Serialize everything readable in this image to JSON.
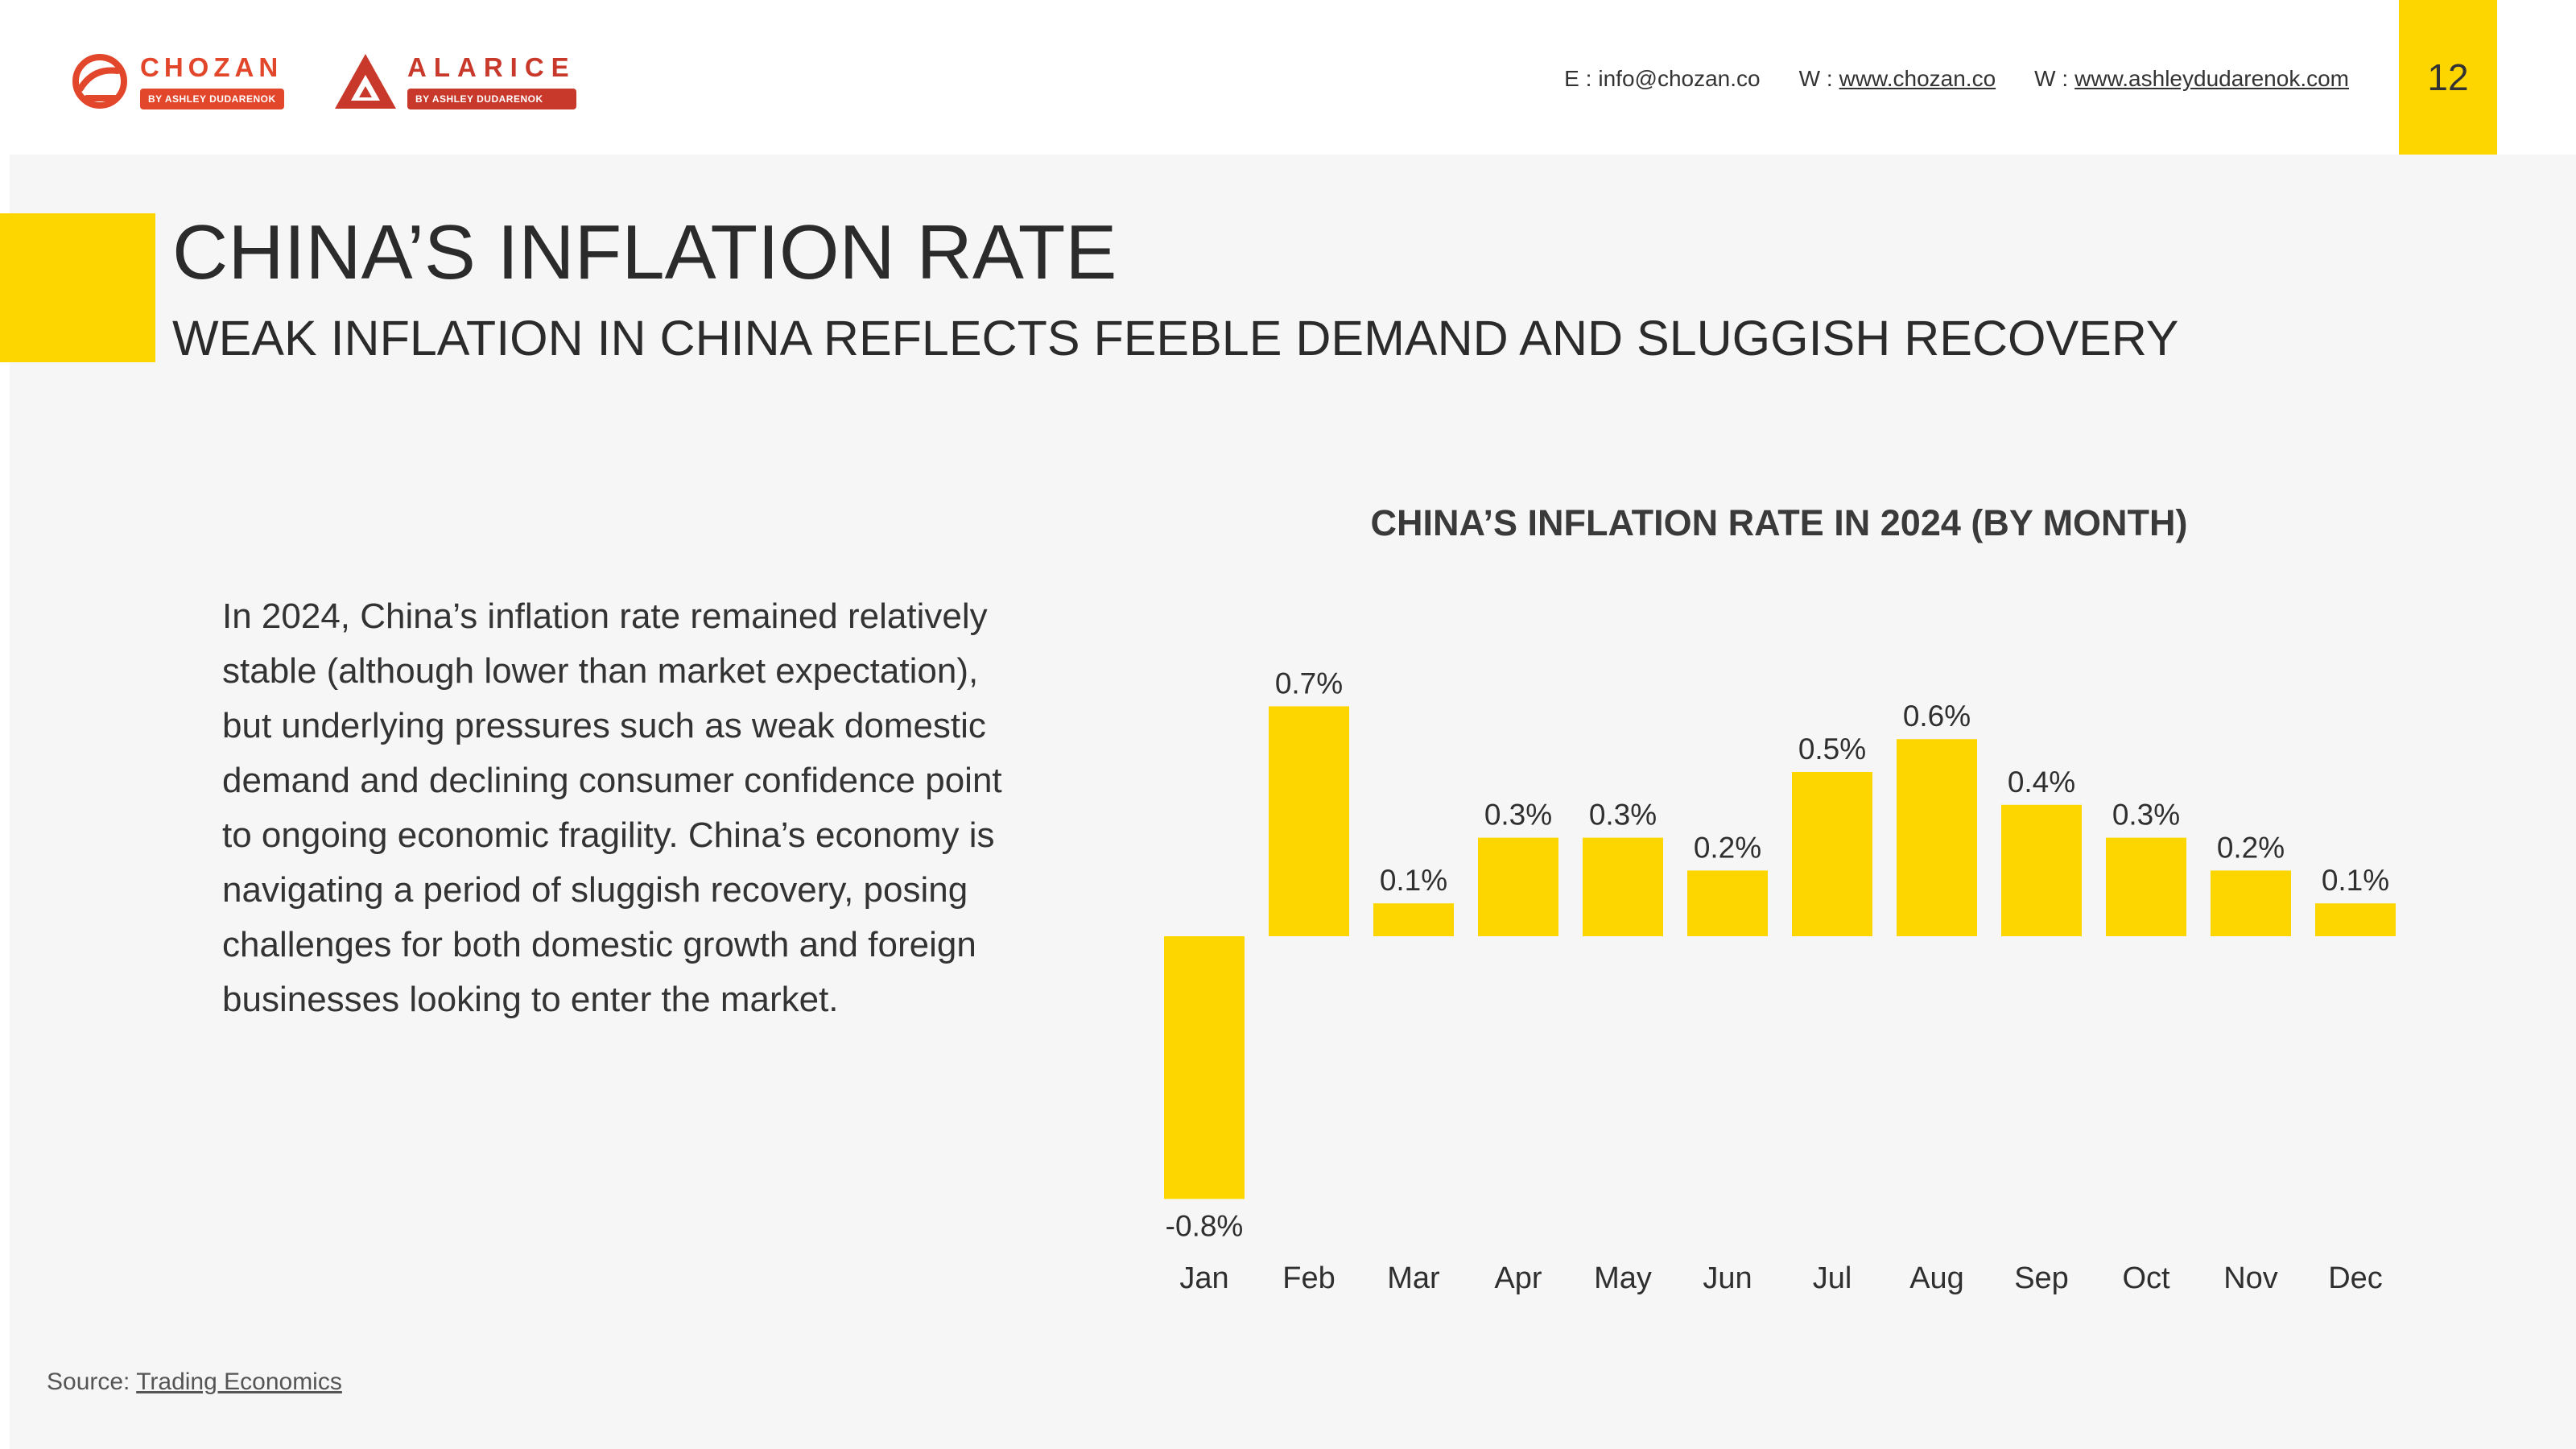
{
  "header": {
    "brands": [
      {
        "name": "CHOZAN",
        "tagline": "BY ASHLEY DUDARENOK"
      },
      {
        "name": "ALARICE",
        "tagline": "BY ASHLEY DUDARENOK"
      }
    ],
    "contacts": [
      {
        "label": "E :",
        "value": "info@chozan.co"
      },
      {
        "label": "W :",
        "value": "www.chozan.co"
      },
      {
        "label": "W :",
        "value": "www.ashleydudarenok.com"
      }
    ],
    "page_number": "12"
  },
  "slide": {
    "title": "CHINA’S INFLATION RATE",
    "subtitle": "WEAK INFLATION IN CHINA REFLECTS FEEBLE DEMAND AND SLUGGISH RECOVERY",
    "body": "In 2024, China’s inflation rate remained relatively stable (although lower than market expectation), but underlying pressures such as weak domestic demand and declining consumer confidence point to ongoing economic fragility. China’s economy is navigating a period of sluggish recovery, posing challenges for both domestic growth and foreign businesses looking to enter the market."
  },
  "chart_data": {
    "type": "bar",
    "title": "CHINA’S INFLATION RATE IN 2024 (BY MONTH)",
    "categories": [
      "Jan",
      "Feb",
      "Mar",
      "Apr",
      "May",
      "Jun",
      "Jul",
      "Aug",
      "Sep",
      "Oct",
      "Nov",
      "Dec"
    ],
    "values": [
      -0.8,
      0.7,
      0.1,
      0.3,
      0.3,
      0.2,
      0.5,
      0.6,
      0.4,
      0.3,
      0.2,
      0.1
    ],
    "data_labels": [
      "-0.8%",
      "0.7%",
      "0.1%",
      "0.3%",
      "0.3%",
      "0.2%",
      "0.5%",
      "0.6%",
      "0.4%",
      "0.3%",
      "0.2%",
      "0.1%"
    ],
    "unit": "%",
    "xlabel": "",
    "ylabel": "",
    "ylim": [
      -0.8,
      0.7
    ],
    "grid": false,
    "legend": "none",
    "bar_color": "#fdd600"
  },
  "footer": {
    "source_label": "Source:",
    "source_link": "Trading Economics"
  },
  "colors": {
    "accent": "#fdd600",
    "brand_red": "#e2472c",
    "text": "#2b2b2b"
  }
}
